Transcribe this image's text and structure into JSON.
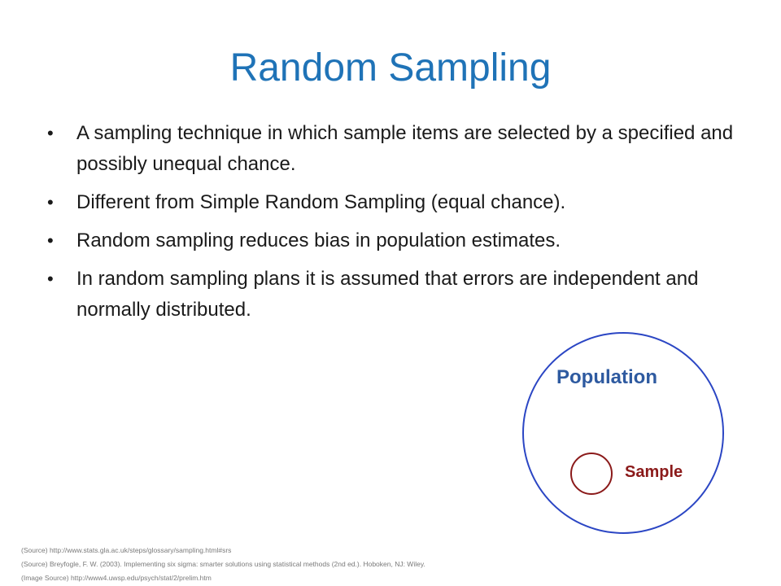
{
  "slide": {
    "title": "Random Sampling",
    "bullet_symbol": "•",
    "bullets": [
      "A sampling technique in which sample items are selected by a specified and possibly unequal chance.",
      "Different from Simple Random Sampling (equal chance).",
      "Random sampling reduces bias in population estimates.",
      "In random sampling plans it is assumed that errors are independent and normally distributed."
    ],
    "figure": {
      "population_label": "Population",
      "sample_label": "Sample",
      "population_color": "#2b46c4",
      "sample_color": "#8b1a1a"
    },
    "sources": [
      "(Source) http://www.stats.gla.ac.uk/steps/glossary/sampling.html#srs",
      "(Source) Breyfogle, F. W. (2003). Implementing six sigma: smarter solutions using statistical methods (2nd ed.). Hoboken, NJ: Wiley.",
      "(Image Source) http://www4.uwsp.edu/psych/stat/2/prelim.htm"
    ]
  }
}
